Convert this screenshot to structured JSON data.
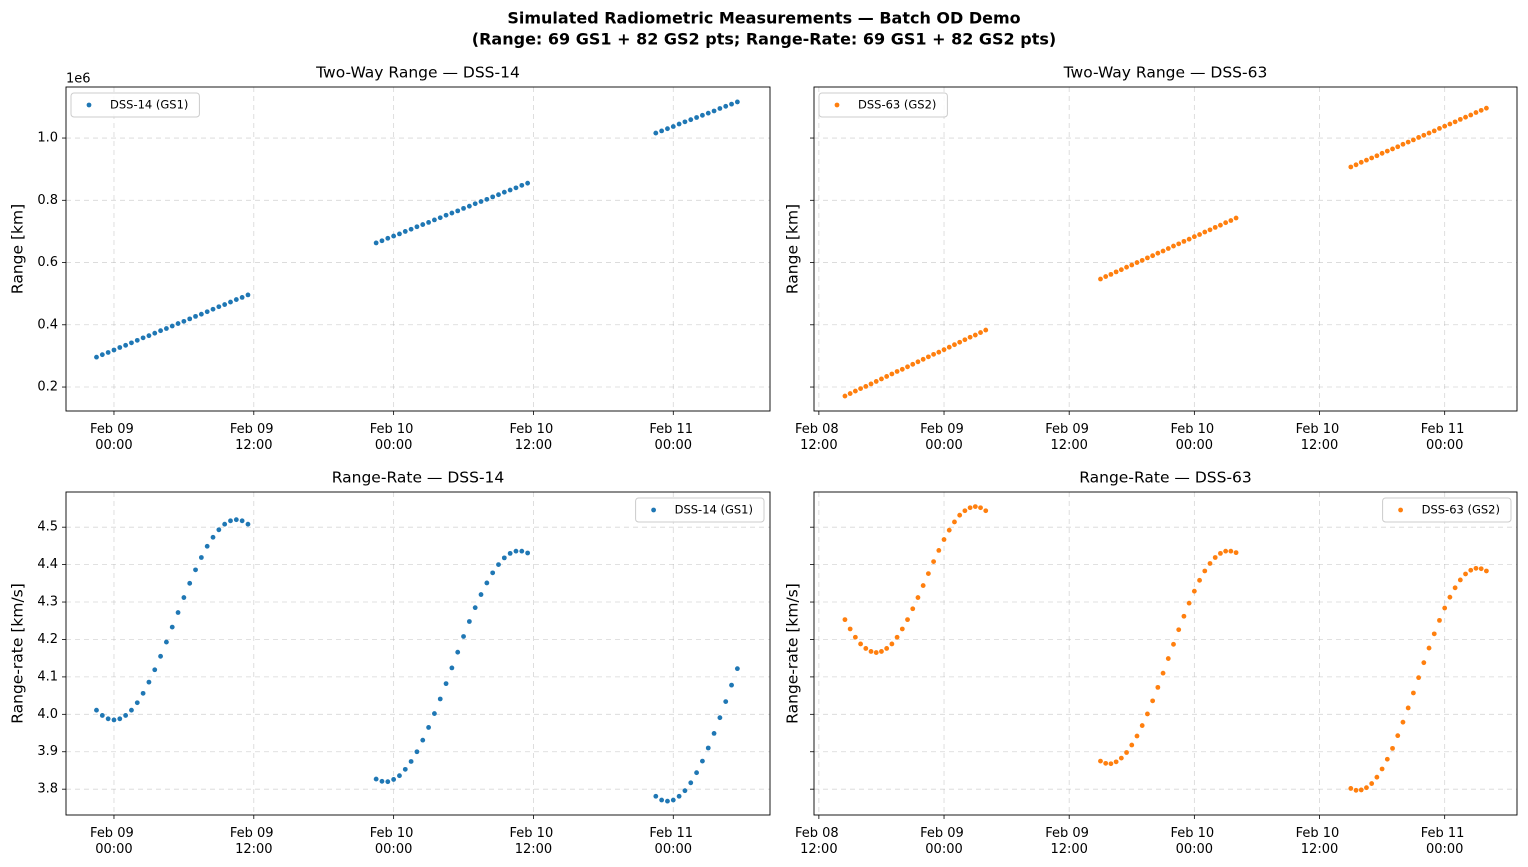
{
  "title": "Simulated Radiometric Measurements — Batch OD Demo",
  "subtitle": "(Range: 69 GS1 + 82 GS2 pts;  Range-Rate: 69 GS1 + 82 GS2 pts)",
  "chart_data": [
    {
      "type": "scatter",
      "title": "Two-Way Range — DSS-14",
      "y_label": "Range [km]",
      "y_offset_text": "1e6",
      "xlim": [
        "Feb 08 19:53",
        "Feb 11 08:18"
      ],
      "xticks": [
        "Feb 09 00:00",
        "Feb 09 12:00",
        "Feb 10 00:00",
        "Feb 10 12:00",
        "Feb 11 00:00"
      ],
      "ylim": [
        0.123,
        1.164
      ],
      "yticks": [
        0.2,
        0.4,
        0.6,
        0.8,
        {
          "value": 1,
          "label": "1.0"
        }
      ],
      "show_ytick_labels": true,
      "grid": true,
      "legend": "upper left",
      "x": [
        "Feb 08 22:30",
        "Feb 08 23:00",
        "Feb 08 23:30",
        "Feb 09 00:00",
        "Feb 09 00:30",
        "Feb 09 01:00",
        "Feb 09 01:30",
        "Feb 09 02:00",
        "Feb 09 02:30",
        "Feb 09 03:00",
        "Feb 09 03:30",
        "Feb 09 04:00",
        "Feb 09 04:30",
        "Feb 09 05:00",
        "Feb 09 05:30",
        "Feb 09 06:00",
        "Feb 09 06:30",
        "Feb 09 07:00",
        "Feb 09 07:30",
        "Feb 09 08:00",
        "Feb 09 08:30",
        "Feb 09 09:00",
        "Feb 09 09:30",
        "Feb 09 10:00",
        "Feb 09 10:30",
        "Feb 09 11:00",
        "Feb 09 11:30",
        "Feb 09 22:30",
        "Feb 09 23:00",
        "Feb 09 23:30",
        "Feb 10 00:00",
        "Feb 10 00:30",
        "Feb 10 01:00",
        "Feb 10 01:30",
        "Feb 10 02:00",
        "Feb 10 02:30",
        "Feb 10 03:00",
        "Feb 10 03:30",
        "Feb 10 04:00",
        "Feb 10 04:30",
        "Feb 10 05:00",
        "Feb 10 05:30",
        "Feb 10 06:00",
        "Feb 10 06:30",
        "Feb 10 07:00",
        "Feb 10 07:30",
        "Feb 10 08:00",
        "Feb 10 08:30",
        "Feb 10 09:00",
        "Feb 10 09:30",
        "Feb 10 10:00",
        "Feb 10 10:30",
        "Feb 10 11:00",
        "Feb 10 11:30",
        "Feb 10 22:30",
        "Feb 10 23:00",
        "Feb 10 23:30",
        "Feb 11 00:00",
        "Feb 11 00:30",
        "Feb 11 01:00",
        "Feb 11 01:30",
        "Feb 11 02:00",
        "Feb 11 02:30",
        "Feb 11 03:00",
        "Feb 11 03:30",
        "Feb 11 04:00",
        "Feb 11 04:30",
        "Feb 11 05:00",
        "Feb 11 05:30"
      ],
      "series": [
        {
          "name": "DSS-14 (GS1)",
          "color": "#1f77b4",
          "values": [
            0.296,
            0.304,
            0.311,
            0.319,
            0.327,
            0.334,
            0.342,
            0.35,
            0.358,
            0.365,
            0.373,
            0.381,
            0.388,
            0.396,
            0.404,
            0.411,
            0.419,
            0.427,
            0.434,
            0.442,
            0.45,
            0.458,
            0.465,
            0.473,
            0.481,
            0.488,
            0.496,
            0.663,
            0.67,
            0.678,
            0.685,
            0.692,
            0.7,
            0.707,
            0.715,
            0.722,
            0.729,
            0.737,
            0.744,
            0.752,
            0.759,
            0.766,
            0.774,
            0.781,
            0.789,
            0.796,
            0.803,
            0.811,
            0.818,
            0.826,
            0.833,
            0.84,
            0.848,
            0.855,
            1.016,
            1.023,
            1.03,
            1.037,
            1.045,
            1.052,
            1.059,
            1.066,
            1.073,
            1.08,
            1.087,
            1.095,
            1.102,
            1.109,
            1.116
          ]
        }
      ]
    },
    {
      "type": "scatter",
      "title": "Two-Way Range — DSS-63",
      "y_label": "Range [km]",
      "xlim": [
        "Feb 08 11:32",
        "Feb 11 06:56"
      ],
      "xticks": [
        "Feb 08 12:00",
        "Feb 09 00:00",
        "Feb 09 12:00",
        "Feb 10 00:00",
        "Feb 10 12:00",
        "Feb 11 00:00"
      ],
      "ylim": [
        0.123,
        1.164
      ],
      "yticks": [
        0.2,
        0.4,
        0.6,
        0.8,
        1
      ],
      "show_ytick_labels": false,
      "grid": true,
      "legend": "upper left",
      "x": [
        "Feb 08 14:30",
        "Feb 08 15:00",
        "Feb 08 15:30",
        "Feb 08 16:00",
        "Feb 08 16:30",
        "Feb 08 17:00",
        "Feb 08 17:30",
        "Feb 08 18:00",
        "Feb 08 18:30",
        "Feb 08 19:00",
        "Feb 08 19:30",
        "Feb 08 20:00",
        "Feb 08 20:30",
        "Feb 08 21:00",
        "Feb 08 21:30",
        "Feb 08 22:00",
        "Feb 08 22:30",
        "Feb 08 23:00",
        "Feb 08 23:30",
        "Feb 09 00:00",
        "Feb 09 00:30",
        "Feb 09 01:00",
        "Feb 09 01:30",
        "Feb 09 02:00",
        "Feb 09 02:30",
        "Feb 09 03:00",
        "Feb 09 03:30",
        "Feb 09 04:00",
        "Feb 09 15:00",
        "Feb 09 15:30",
        "Feb 09 16:00",
        "Feb 09 16:30",
        "Feb 09 17:00",
        "Feb 09 17:30",
        "Feb 09 18:00",
        "Feb 09 18:30",
        "Feb 09 19:00",
        "Feb 09 19:30",
        "Feb 09 20:00",
        "Feb 09 20:30",
        "Feb 09 21:00",
        "Feb 09 21:30",
        "Feb 09 22:00",
        "Feb 09 22:30",
        "Feb 09 23:00",
        "Feb 09 23:30",
        "Feb 10 00:00",
        "Feb 10 00:30",
        "Feb 10 01:00",
        "Feb 10 01:30",
        "Feb 10 02:00",
        "Feb 10 02:30",
        "Feb 10 03:00",
        "Feb 10 03:30",
        "Feb 10 04:00",
        "Feb 10 15:00",
        "Feb 10 15:30",
        "Feb 10 16:00",
        "Feb 10 16:30",
        "Feb 10 17:00",
        "Feb 10 17:30",
        "Feb 10 18:00",
        "Feb 10 18:30",
        "Feb 10 19:00",
        "Feb 10 19:30",
        "Feb 10 20:00",
        "Feb 10 20:30",
        "Feb 10 21:00",
        "Feb 10 21:30",
        "Feb 10 22:00",
        "Feb 10 22:30",
        "Feb 10 23:00",
        "Feb 10 23:30",
        "Feb 11 00:00",
        "Feb 11 00:30",
        "Feb 11 01:00",
        "Feb 11 01:30",
        "Feb 11 02:00",
        "Feb 11 02:30",
        "Feb 11 03:00",
        "Feb 11 03:30",
        "Feb 11 04:00"
      ],
      "series": [
        {
          "name": "DSS-63 (GS2)",
          "color": "#ff7f0e",
          "values": [
            0.171,
            0.179,
            0.187,
            0.195,
            0.202,
            0.21,
            0.218,
            0.226,
            0.234,
            0.242,
            0.25,
            0.257,
            0.265,
            0.273,
            0.281,
            0.289,
            0.297,
            0.305,
            0.312,
            0.32,
            0.328,
            0.336,
            0.344,
            0.352,
            0.36,
            0.367,
            0.375,
            0.383,
            0.547,
            0.555,
            0.562,
            0.57,
            0.577,
            0.585,
            0.592,
            0.6,
            0.607,
            0.615,
            0.622,
            0.63,
            0.637,
            0.645,
            0.653,
            0.66,
            0.668,
            0.675,
            0.683,
            0.69,
            0.698,
            0.705,
            0.713,
            0.72,
            0.728,
            0.735,
            0.743,
            0.907,
            0.914,
            0.922,
            0.929,
            0.936,
            0.943,
            0.951,
            0.958,
            0.965,
            0.972,
            0.98,
            0.987,
            0.994,
            1.002,
            1.009,
            1.016,
            1.023,
            1.031,
            1.038,
            1.045,
            1.052,
            1.06,
            1.067,
            1.074,
            1.082,
            1.089,
            1.096
          ]
        }
      ]
    },
    {
      "type": "scatter",
      "title": "Range-Rate — DSS-14",
      "y_label": "Range-rate [km/s]",
      "xlim": [
        "Feb 08 19:53",
        "Feb 11 08:18"
      ],
      "xticks": [
        "Feb 09 00:00",
        "Feb 09 12:00",
        "Feb 10 00:00",
        "Feb 10 12:00",
        "Feb 11 00:00"
      ],
      "ylim": [
        3.731,
        4.594
      ],
      "yticks": [
        3.8,
        3.9,
        {
          "value": 4,
          "label": "4.0"
        },
        4.1,
        4.2,
        4.3,
        4.4,
        4.5
      ],
      "show_ytick_labels": true,
      "grid": true,
      "legend": "upper right",
      "x": [
        "Feb 08 22:30",
        "Feb 08 23:00",
        "Feb 08 23:30",
        "Feb 09 00:00",
        "Feb 09 00:30",
        "Feb 09 01:00",
        "Feb 09 01:30",
        "Feb 09 02:00",
        "Feb 09 02:30",
        "Feb 09 03:00",
        "Feb 09 03:30",
        "Feb 09 04:00",
        "Feb 09 04:30",
        "Feb 09 05:00",
        "Feb 09 05:30",
        "Feb 09 06:00",
        "Feb 09 06:30",
        "Feb 09 07:00",
        "Feb 09 07:30",
        "Feb 09 08:00",
        "Feb 09 08:30",
        "Feb 09 09:00",
        "Feb 09 09:30",
        "Feb 09 10:00",
        "Feb 09 10:30",
        "Feb 09 11:00",
        "Feb 09 11:30",
        "Feb 09 22:30",
        "Feb 09 23:00",
        "Feb 09 23:30",
        "Feb 10 00:00",
        "Feb 10 00:30",
        "Feb 10 01:00",
        "Feb 10 01:30",
        "Feb 10 02:00",
        "Feb 10 02:30",
        "Feb 10 03:00",
        "Feb 10 03:30",
        "Feb 10 04:00",
        "Feb 10 04:30",
        "Feb 10 05:00",
        "Feb 10 05:30",
        "Feb 10 06:00",
        "Feb 10 06:30",
        "Feb 10 07:00",
        "Feb 10 07:30",
        "Feb 10 08:00",
        "Feb 10 08:30",
        "Feb 10 09:00",
        "Feb 10 09:30",
        "Feb 10 10:00",
        "Feb 10 10:30",
        "Feb 10 11:00",
        "Feb 10 11:30",
        "Feb 10 22:30",
        "Feb 10 23:00",
        "Feb 10 23:30",
        "Feb 11 00:00",
        "Feb 11 00:30",
        "Feb 11 01:00",
        "Feb 11 01:30",
        "Feb 11 02:00",
        "Feb 11 02:30",
        "Feb 11 03:00",
        "Feb 11 03:30",
        "Feb 11 04:00",
        "Feb 11 04:30",
        "Feb 11 05:00",
        "Feb 11 05:30"
      ],
      "series": [
        {
          "name": "DSS-14 (GS1)",
          "color": "#1f77b4",
          "values": [
            4.011,
            3.997,
            3.988,
            3.985,
            3.988,
            3.997,
            4.011,
            4.031,
            4.056,
            4.086,
            4.119,
            4.155,
            4.193,
            4.233,
            4.272,
            4.312,
            4.35,
            4.386,
            4.419,
            4.449,
            4.473,
            4.493,
            4.508,
            4.517,
            4.52,
            4.517,
            4.508,
            3.827,
            3.821,
            3.82,
            3.826,
            3.836,
            3.853,
            3.874,
            3.9,
            3.931,
            3.965,
            4.002,
            4.041,
            4.082,
            4.124,
            4.166,
            4.208,
            4.248,
            4.285,
            4.32,
            4.351,
            4.378,
            4.4,
            4.418,
            4.43,
            4.436,
            4.436,
            4.431,
            3.781,
            3.771,
            3.768,
            3.771,
            3.781,
            3.796,
            3.817,
            3.844,
            3.875,
            3.91,
            3.949,
            3.991,
            4.034,
            4.078,
            4.122
          ]
        }
      ]
    },
    {
      "type": "scatter",
      "title": "Range-Rate — DSS-63",
      "y_label": "Range-rate [km/s]",
      "xlim": [
        "Feb 08 11:32",
        "Feb 11 06:56"
      ],
      "xticks": [
        "Feb 08 12:00",
        "Feb 09 00:00",
        "Feb 09 12:00",
        "Feb 10 00:00",
        "Feb 10 12:00",
        "Feb 11 00:00"
      ],
      "ylim": [
        3.731,
        4.594
      ],
      "yticks": [
        3.8,
        3.9,
        4,
        4.1,
        4.2,
        4.3,
        4.4,
        4.5
      ],
      "show_ytick_labels": false,
      "grid": true,
      "legend": "upper right",
      "x": [
        "Feb 08 14:30",
        "Feb 08 15:00",
        "Feb 08 15:30",
        "Feb 08 16:00",
        "Feb 08 16:30",
        "Feb 08 17:00",
        "Feb 08 17:30",
        "Feb 08 18:00",
        "Feb 08 18:30",
        "Feb 08 19:00",
        "Feb 08 19:30",
        "Feb 08 20:00",
        "Feb 08 20:30",
        "Feb 08 21:00",
        "Feb 08 21:30",
        "Feb 08 22:00",
        "Feb 08 22:30",
        "Feb 08 23:00",
        "Feb 08 23:30",
        "Feb 09 00:00",
        "Feb 09 00:30",
        "Feb 09 01:00",
        "Feb 09 01:30",
        "Feb 09 02:00",
        "Feb 09 02:30",
        "Feb 09 03:00",
        "Feb 09 03:30",
        "Feb 09 04:00",
        "Feb 09 15:00",
        "Feb 09 15:30",
        "Feb 09 16:00",
        "Feb 09 16:30",
        "Feb 09 17:00",
        "Feb 09 17:30",
        "Feb 09 18:00",
        "Feb 09 18:30",
        "Feb 09 19:00",
        "Feb 09 19:30",
        "Feb 09 20:00",
        "Feb 09 20:30",
        "Feb 09 21:00",
        "Feb 09 21:30",
        "Feb 09 22:00",
        "Feb 09 22:30",
        "Feb 09 23:00",
        "Feb 09 23:30",
        "Feb 10 00:00",
        "Feb 10 00:30",
        "Feb 10 01:00",
        "Feb 10 01:30",
        "Feb 10 02:00",
        "Feb 10 02:30",
        "Feb 10 03:00",
        "Feb 10 03:30",
        "Feb 10 04:00",
        "Feb 10 15:00",
        "Feb 10 15:30",
        "Feb 10 16:00",
        "Feb 10 16:30",
        "Feb 10 17:00",
        "Feb 10 17:30",
        "Feb 10 18:00",
        "Feb 10 18:30",
        "Feb 10 19:00",
        "Feb 10 19:30",
        "Feb 10 20:00",
        "Feb 10 20:30",
        "Feb 10 21:00",
        "Feb 10 21:30",
        "Feb 10 22:00",
        "Feb 10 22:30",
        "Feb 10 23:00",
        "Feb 10 23:30",
        "Feb 11 00:00",
        "Feb 11 00:30",
        "Feb 11 01:00",
        "Feb 11 01:30",
        "Feb 11 02:00",
        "Feb 11 02:30",
        "Feb 11 03:00",
        "Feb 11 03:30",
        "Feb 11 04:00"
      ],
      "series": [
        {
          "name": "DSS-63 (GS2)",
          "color": "#ff7f0e",
          "values": [
            4.253,
            4.228,
            4.206,
            4.188,
            4.176,
            4.168,
            4.165,
            4.168,
            4.176,
            4.188,
            4.206,
            4.228,
            4.253,
            4.282,
            4.312,
            4.344,
            4.376,
            4.408,
            4.438,
            4.467,
            4.492,
            4.514,
            4.532,
            4.544,
            4.552,
            4.555,
            4.552,
            4.544,
            3.875,
            3.869,
            3.868,
            3.873,
            3.883,
            3.898,
            3.918,
            3.942,
            3.97,
            4.001,
            4.036,
            4.072,
            4.11,
            4.149,
            4.187,
            4.226,
            4.262,
            4.297,
            4.329,
            4.358,
            4.383,
            4.403,
            4.419,
            4.43,
            4.436,
            4.436,
            4.432,
            3.802,
            3.797,
            3.798,
            3.804,
            3.815,
            3.832,
            3.854,
            3.88,
            3.909,
            3.943,
            3.979,
            4.017,
            4.057,
            4.098,
            4.138,
            4.177,
            4.215,
            4.251,
            4.284,
            4.313,
            4.338,
            4.359,
            4.375,
            4.385,
            4.39,
            4.389,
            4.383
          ]
        }
      ]
    }
  ]
}
